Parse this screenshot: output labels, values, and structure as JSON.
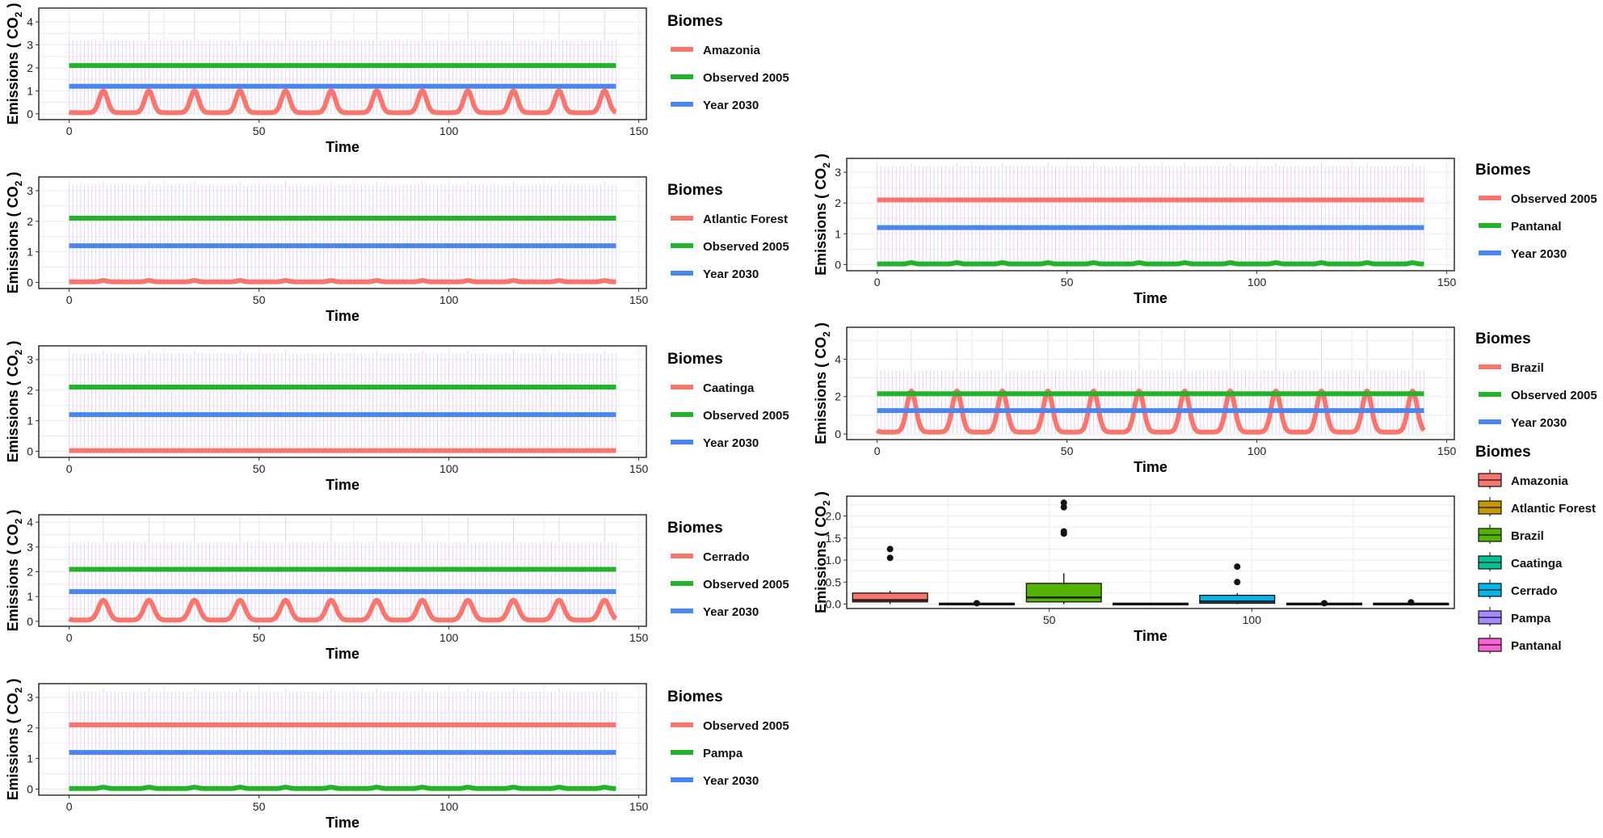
{
  "figure": {
    "description_label": "Multi-panel figure of CO2 emissions by biome"
  },
  "chart_data": [
    {
      "type": "line",
      "panel": "amazonia",
      "xlabel": "Time",
      "ylabel": "Emissions ( CO2 )",
      "xlim": [
        -8,
        152
      ],
      "ylim": [
        -0.25,
        4.6
      ],
      "xticks": [
        0,
        50,
        100,
        150
      ],
      "yticks": [
        0,
        1,
        2,
        3,
        4
      ],
      "legend_title": "Biomes",
      "legend_position": "right",
      "series": [
        {
          "name": "Amazonia",
          "color": "#f8766d",
          "kind": "seasonal",
          "base": 0.05,
          "peak": 1.0,
          "width": 1.1,
          "period": 12,
          "start": 0,
          "end": 144
        },
        {
          "name": "Observed 2005",
          "color": "#22b32a",
          "kind": "constant",
          "value": 2.1,
          "start": 0,
          "end": 144
        },
        {
          "name": "Year 2030",
          "color": "#4a86f0",
          "kind": "constant",
          "value": 1.2,
          "start": 0,
          "end": 144
        }
      ],
      "background": {
        "color": "#e7d2f4",
        "base": 3.2,
        "spike": 4.5,
        "period": 12
      }
    },
    {
      "type": "line",
      "panel": "atlantic_forest",
      "xlabel": "Time",
      "ylabel": "Emissions ( CO2 )",
      "xlim": [
        -8,
        152
      ],
      "ylim": [
        -0.2,
        3.45
      ],
      "xticks": [
        0,
        50,
        100,
        150
      ],
      "yticks": [
        0,
        1,
        2,
        3
      ],
      "legend_title": "Biomes",
      "legend_position": "right",
      "series": [
        {
          "name": "Atlantic Forest",
          "color": "#f8766d",
          "kind": "seasonal",
          "base": 0.02,
          "peak": 0.06,
          "width": 0.8,
          "period": 12,
          "start": 0,
          "end": 144
        },
        {
          "name": "Observed 2005",
          "color": "#22b32a",
          "kind": "constant",
          "value": 2.1,
          "start": 0,
          "end": 144
        },
        {
          "name": "Year 2030",
          "color": "#4a86f0",
          "kind": "constant",
          "value": 1.2,
          "start": 0,
          "end": 144
        }
      ],
      "background": {
        "color": "#e7d2f4",
        "base": 3.2,
        "spike": 3.3,
        "period": 12
      }
    },
    {
      "type": "line",
      "panel": "caatinga",
      "xlabel": "Time",
      "ylabel": "Emissions ( CO2 )",
      "xlim": [
        -8,
        152
      ],
      "ylim": [
        -0.2,
        3.45
      ],
      "xticks": [
        0,
        50,
        100,
        150
      ],
      "yticks": [
        0,
        1,
        2,
        3
      ],
      "legend_title": "Biomes",
      "legend_position": "right",
      "series": [
        {
          "name": "Caatinga",
          "color": "#f8766d",
          "kind": "constant",
          "value": 0.02,
          "start": 0,
          "end": 144
        },
        {
          "name": "Observed 2005",
          "color": "#22b32a",
          "kind": "constant",
          "value": 2.1,
          "start": 0,
          "end": 144
        },
        {
          "name": "Year 2030",
          "color": "#4a86f0",
          "kind": "constant",
          "value": 1.2,
          "start": 0,
          "end": 144
        }
      ],
      "background": {
        "color": "#e7d2f4",
        "base": 3.2,
        "spike": 3.3,
        "period": 12
      }
    },
    {
      "type": "line",
      "panel": "cerrado",
      "xlabel": "Time",
      "ylabel": "Emissions ( CO2 )",
      "xlim": [
        -8,
        152
      ],
      "ylim": [
        -0.2,
        4.3
      ],
      "xticks": [
        0,
        50,
        100,
        150
      ],
      "yticks": [
        0,
        1,
        2,
        3,
        4
      ],
      "legend_title": "Biomes",
      "legend_position": "right",
      "series": [
        {
          "name": "Cerrado",
          "color": "#f8766d",
          "kind": "seasonal",
          "base": 0.05,
          "peak": 0.85,
          "width": 1.3,
          "period": 12,
          "start": 0,
          "end": 144
        },
        {
          "name": "Observed 2005",
          "color": "#22b32a",
          "kind": "constant",
          "value": 2.1,
          "start": 0,
          "end": 144
        },
        {
          "name": "Year 2030",
          "color": "#4a86f0",
          "kind": "constant",
          "value": 1.2,
          "start": 0,
          "end": 144
        }
      ],
      "background": {
        "color": "#e7d2f4",
        "base": 3.2,
        "spike": 4.2,
        "period": 12
      }
    },
    {
      "type": "line",
      "panel": "pampa",
      "xlabel": "Time",
      "ylabel": "Emissions ( CO2 )",
      "xlim": [
        -8,
        152
      ],
      "ylim": [
        -0.2,
        3.45
      ],
      "xticks": [
        0,
        50,
        100,
        150
      ],
      "yticks": [
        0,
        1,
        2,
        3
      ],
      "legend_title": "Biomes",
      "legend_position": "right",
      "series": [
        {
          "name": "Observed 2005",
          "color": "#f8766d",
          "kind": "constant",
          "value": 2.1,
          "start": 0,
          "end": 144
        },
        {
          "name": "Pampa",
          "color": "#22b32a",
          "kind": "seasonal",
          "base": 0.02,
          "peak": 0.06,
          "width": 0.8,
          "period": 12,
          "start": 0,
          "end": 144
        },
        {
          "name": "Year 2030",
          "color": "#4a86f0",
          "kind": "constant",
          "value": 1.2,
          "start": 0,
          "end": 144
        }
      ],
      "background": {
        "color": "#e7d2f4",
        "base": 3.2,
        "spike": 3.3,
        "period": 12
      }
    },
    {
      "type": "line",
      "panel": "pantanal",
      "xlabel": "Time",
      "ylabel": "Emissions ( CO2 )",
      "xlim": [
        -8,
        152
      ],
      "ylim": [
        -0.2,
        3.45
      ],
      "xticks": [
        0,
        50,
        100,
        150
      ],
      "yticks": [
        0,
        1,
        2,
        3
      ],
      "legend_title": "Biomes",
      "legend_position": "right",
      "series": [
        {
          "name": "Observed 2005",
          "color": "#f8766d",
          "kind": "constant",
          "value": 2.1,
          "start": 0,
          "end": 144
        },
        {
          "name": "Pantanal",
          "color": "#22b32a",
          "kind": "seasonal",
          "base": 0.02,
          "peak": 0.06,
          "width": 0.8,
          "period": 12,
          "start": 0,
          "end": 144
        },
        {
          "name": "Year 2030",
          "color": "#4a86f0",
          "kind": "constant",
          "value": 1.2,
          "start": 0,
          "end": 144
        }
      ],
      "background": {
        "color": "#e7d2f4",
        "base": 3.2,
        "spike": 3.3,
        "period": 12
      }
    },
    {
      "type": "line",
      "panel": "brazil",
      "xlabel": "Time",
      "ylabel": "Emissions ( CO2 )",
      "xlim": [
        -8,
        152
      ],
      "ylim": [
        -0.3,
        5.7
      ],
      "xticks": [
        0,
        50,
        100,
        150
      ],
      "yticks": [
        0,
        2,
        4
      ],
      "legend_title": "Biomes",
      "legend_position": "right",
      "series": [
        {
          "name": "Brazil",
          "color": "#f8766d",
          "kind": "seasonal",
          "base": 0.1,
          "peak": 2.3,
          "width": 1.2,
          "period": 12,
          "start": 0,
          "end": 144
        },
        {
          "name": "Observed 2005",
          "color": "#22b32a",
          "kind": "constant",
          "value": 2.15,
          "start": 0,
          "end": 144
        },
        {
          "name": "Year 2030",
          "color": "#4a86f0",
          "kind": "constant",
          "value": 1.25,
          "start": 0,
          "end": 144
        }
      ],
      "background": {
        "color": "#e7d2f4",
        "base": 3.4,
        "spike": 5.6,
        "period": 12
      }
    },
    {
      "type": "box",
      "panel": "boxplot",
      "xlabel": "Time",
      "ylabel": "Emissions ( CO2 )",
      "xlim": [
        0,
        150
      ],
      "ylim": [
        -0.1,
        2.45
      ],
      "xticks": [
        50,
        100
      ],
      "yticks": [
        0.0,
        0.5,
        1.0,
        1.5,
        2.0
      ],
      "legend_title": "Biomes",
      "legend_position": "right",
      "boxes": [
        {
          "name": "Amazonia",
          "color": "#f8766d",
          "x": 10.7,
          "width": 18.5,
          "q1": 0.05,
          "median": 0.09,
          "q3": 0.25,
          "wlow": 0.0,
          "whigh": 0.3,
          "outliers": [
            1.05,
            1.25
          ]
        },
        {
          "name": "Atlantic Forest",
          "color": "#c49a00",
          "x": 32.1,
          "width": 18.5,
          "q1": 0.0,
          "median": 0.01,
          "q3": 0.02,
          "wlow": 0.0,
          "whigh": 0.02,
          "outliers": [
            0.02
          ]
        },
        {
          "name": "Brazil",
          "color": "#53b400",
          "x": 53.6,
          "width": 18.5,
          "q1": 0.05,
          "median": 0.15,
          "q3": 0.47,
          "wlow": 0.0,
          "whigh": 0.7,
          "outliers": [
            1.6,
            1.65,
            2.2,
            2.3
          ]
        },
        {
          "name": "Caatinga",
          "color": "#00c094",
          "x": 75.0,
          "width": 18.5,
          "q1": 0.0,
          "median": 0.01,
          "q3": 0.02,
          "wlow": 0.0,
          "whigh": 0.02,
          "outliers": []
        },
        {
          "name": "Cerrado",
          "color": "#00b6eb",
          "x": 96.4,
          "width": 18.5,
          "q1": 0.02,
          "median": 0.06,
          "q3": 0.2,
          "wlow": 0.0,
          "whigh": 0.25,
          "outliers": [
            0.5,
            0.85
          ]
        },
        {
          "name": "Pampa",
          "color": "#a58aff",
          "x": 117.9,
          "width": 18.5,
          "q1": 0.0,
          "median": 0.01,
          "q3": 0.02,
          "wlow": 0.0,
          "whigh": 0.02,
          "outliers": [
            0.02
          ]
        },
        {
          "name": "Pantanal",
          "color": "#fb61d7",
          "x": 139.3,
          "width": 18.5,
          "q1": 0.0,
          "median": 0.01,
          "q3": 0.02,
          "wlow": 0.0,
          "whigh": 0.02,
          "outliers": [
            0.04
          ]
        }
      ]
    }
  ]
}
